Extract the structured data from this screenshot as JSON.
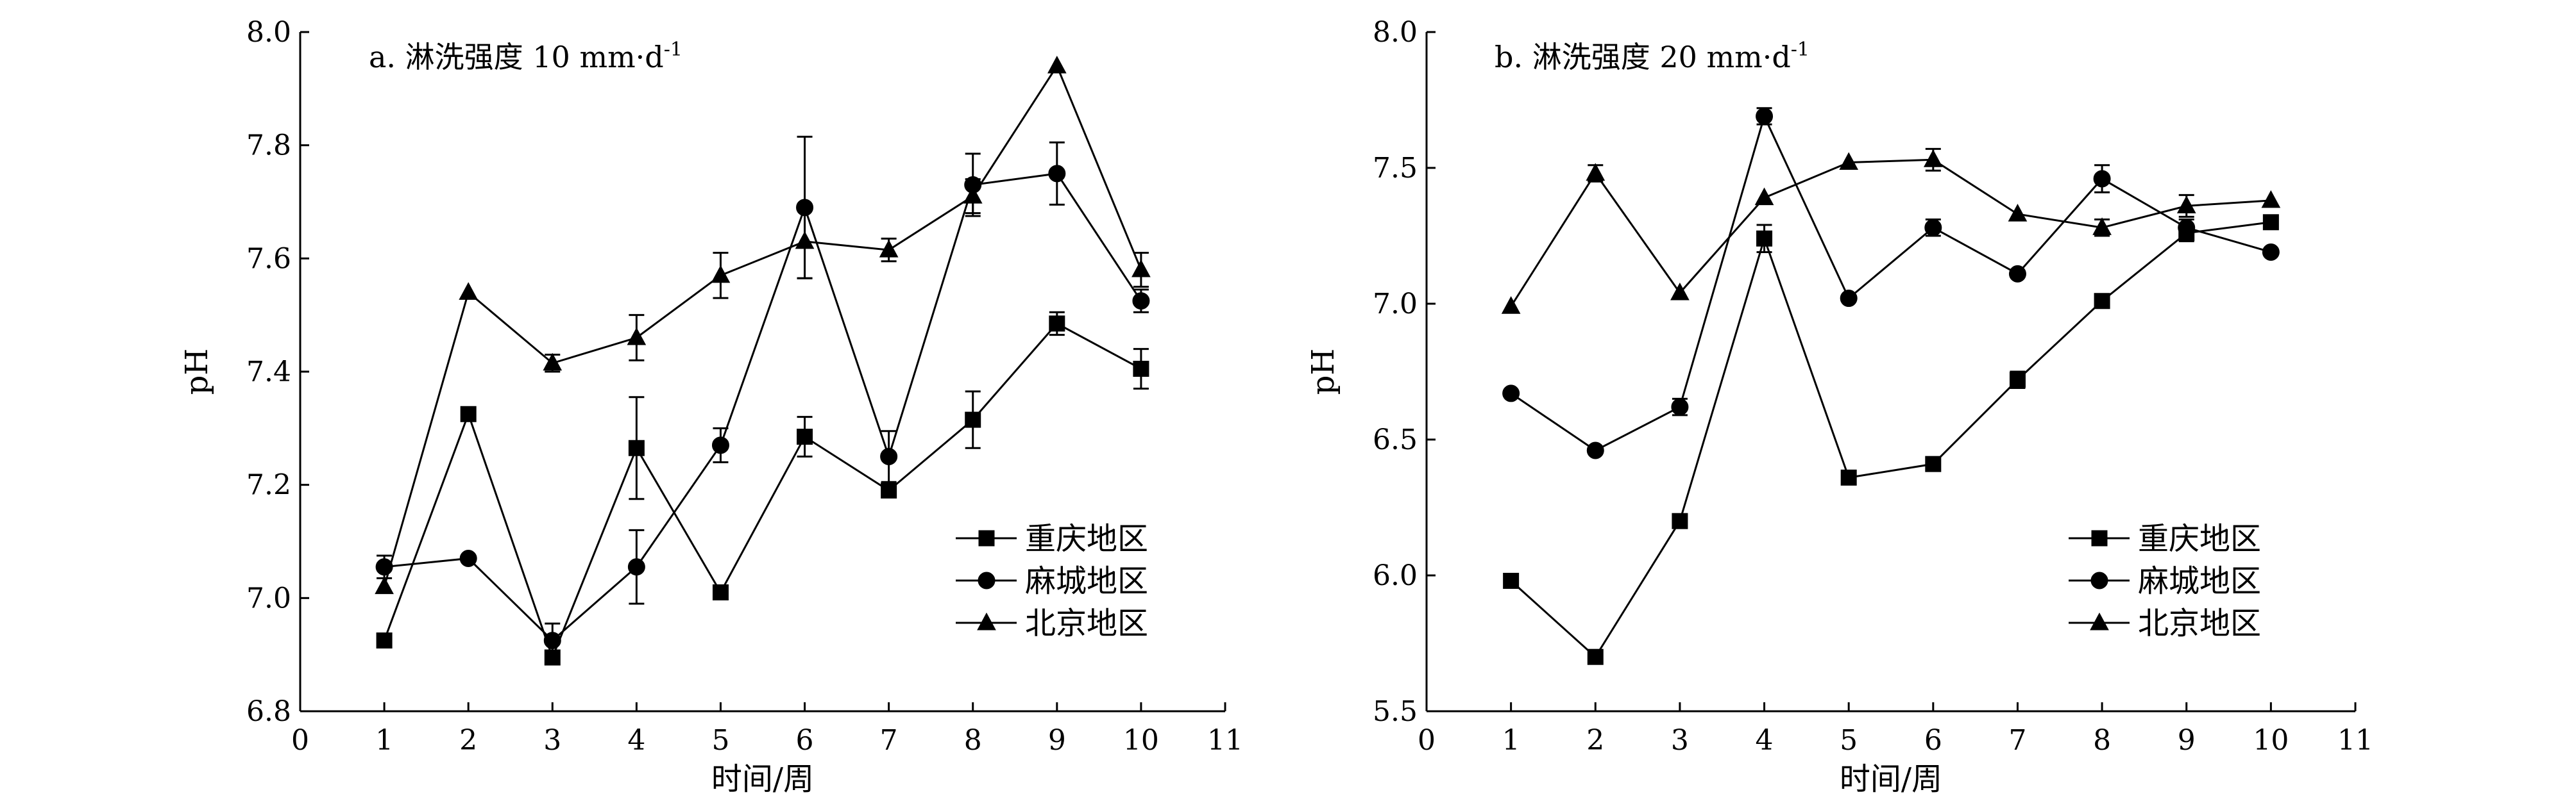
{
  "chart_data": [
    {
      "type": "line",
      "title": "a. 淋洗强度 10 mm·d",
      "title_sup": "-1",
      "xlabel": "时间/周",
      "ylabel": "pH",
      "xlim": [
        0,
        11
      ],
      "ylim": [
        6.8,
        8.0
      ],
      "xticks": [
        "0",
        "1",
        "2",
        "3",
        "4",
        "5",
        "6",
        "7",
        "8",
        "9",
        "10",
        "11"
      ],
      "yticks": [
        "6.8",
        "7.0",
        "7.2",
        "7.4",
        "7.6",
        "7.8",
        "8.0"
      ],
      "legend_position": "bottom-right",
      "x": [
        1,
        2,
        3,
        4,
        5,
        6,
        7,
        8,
        9,
        10
      ],
      "series": [
        {
          "name": "重庆地区",
          "marker": "square",
          "values": [
            6.925,
            7.325,
            6.895,
            7.265,
            7.01,
            7.285,
            7.19,
            7.315,
            7.485,
            7.405
          ],
          "errors": [
            0.0,
            0.0,
            0.0,
            0.09,
            0.0,
            0.035,
            0.0,
            0.05,
            0.02,
            0.035
          ]
        },
        {
          "name": "麻城地区",
          "marker": "circle",
          "values": [
            7.055,
            7.07,
            6.925,
            7.055,
            7.27,
            7.69,
            7.25,
            7.73,
            7.75,
            7.525
          ],
          "errors": [
            0.02,
            0.0,
            0.03,
            0.065,
            0.03,
            0.125,
            0.045,
            0.055,
            0.055,
            0.02
          ]
        },
        {
          "name": "北京地区",
          "marker": "triangle",
          "values": [
            7.02,
            7.54,
            7.415,
            7.46,
            7.57,
            7.63,
            7.615,
            7.71,
            7.94,
            7.58
          ],
          "errors": [
            0.0,
            0.0,
            0.015,
            0.04,
            0.04,
            0.065,
            0.02,
            0.03,
            0.0,
            0.03
          ]
        }
      ]
    },
    {
      "type": "line",
      "title": "b. 淋洗强度 20 mm·d",
      "title_sup": "-1",
      "xlabel": "时间/周",
      "ylabel": "pH",
      "xlim": [
        0,
        11
      ],
      "ylim": [
        5.5,
        8.0
      ],
      "xticks": [
        "0",
        "1",
        "2",
        "3",
        "4",
        "5",
        "6",
        "7",
        "8",
        "9",
        "10",
        "11"
      ],
      "yticks": [
        "5.5",
        "6.0",
        "6.5",
        "7.0",
        "7.5",
        "8.0"
      ],
      "legend_position": "bottom-right",
      "x": [
        1,
        2,
        3,
        4,
        5,
        6,
        7,
        8,
        9,
        10
      ],
      "series": [
        {
          "name": "重庆地区",
          "marker": "square",
          "values": [
            5.98,
            5.7,
            6.2,
            7.24,
            6.36,
            6.41,
            6.72,
            7.01,
            7.26,
            7.3
          ],
          "errors": [
            0.0,
            0.0,
            0.0,
            0.05,
            0.0,
            0.0,
            0.03,
            0.0,
            0.03,
            0.0
          ]
        },
        {
          "name": "麻城地区",
          "marker": "circle",
          "values": [
            6.67,
            6.46,
            6.62,
            7.69,
            7.02,
            7.28,
            7.11,
            7.46,
            7.28,
            7.19
          ],
          "errors": [
            0.0,
            0.0,
            0.03,
            0.03,
            0.0,
            0.03,
            0.0,
            0.05,
            0.03,
            0.0
          ]
        },
        {
          "name": "北京地区",
          "marker": "triangle",
          "values": [
            6.99,
            7.48,
            7.04,
            7.39,
            7.52,
            7.53,
            7.33,
            7.28,
            7.36,
            7.38
          ],
          "errors": [
            0.0,
            0.03,
            0.0,
            0.0,
            0.0,
            0.04,
            0.0,
            0.03,
            0.04,
            0.0
          ]
        }
      ]
    }
  ]
}
